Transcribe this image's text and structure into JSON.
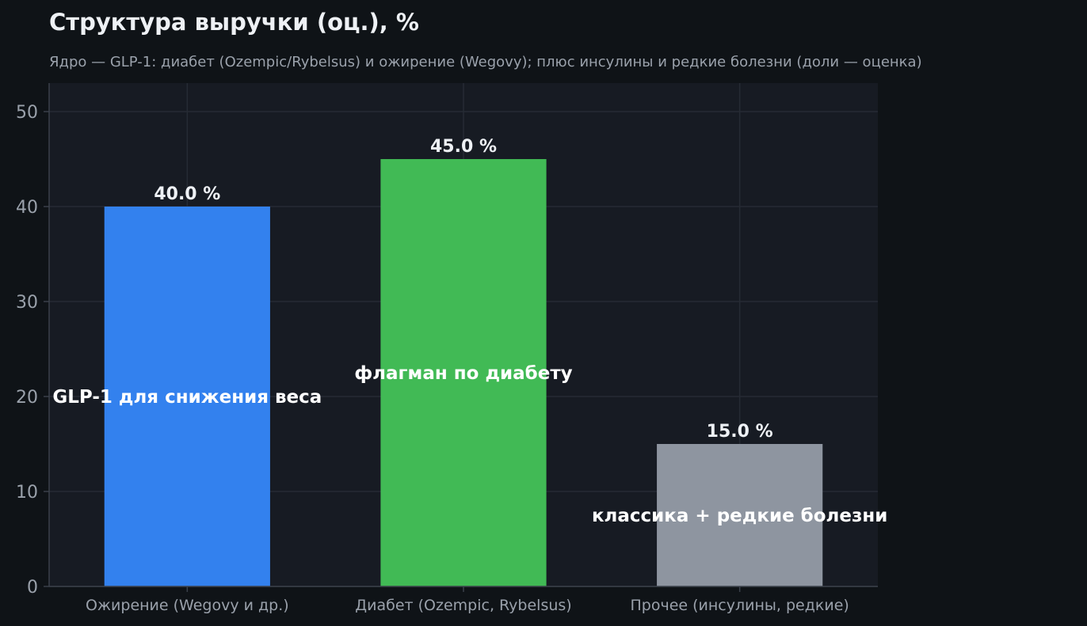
{
  "chart_data": {
    "type": "bar",
    "title": "Структура выручки (оц.), %",
    "subtitle": "Ядро — GLP-1: диабет (Ozempic/Rybelsus) и ожирение (Wegovy); плюс инсулины и редкие болезни (доли — оценка)",
    "categories": [
      "Ожирение (Wegovy и др.)",
      "Диабет (Ozempic, Rybelsus)",
      "Прочее (инсулины, редкие)"
    ],
    "values": [
      40.0,
      45.0,
      15.0
    ],
    "value_labels": [
      "40.0 %",
      "45.0 %",
      "15.0 %"
    ],
    "annotations": [
      {
        "text": "GLP-1 для снижения веса",
        "category_index": 0,
        "y": 20
      },
      {
        "text": "флагман по диабету",
        "category_index": 1,
        "y": 22.5
      },
      {
        "text": "классика + редкие болезни",
        "category_index": 2,
        "y": 7.5
      }
    ],
    "bar_colors": [
      "#3381ee",
      "#41ba55",
      "#8e95a0"
    ],
    "ylim": [
      0,
      53
    ],
    "yticks": [
      "0",
      "10",
      "20",
      "30",
      "40",
      "50"
    ],
    "ytick_values": [
      0,
      10,
      20,
      30,
      40,
      50
    ],
    "grid": true,
    "xlabel": "",
    "ylabel": ""
  }
}
